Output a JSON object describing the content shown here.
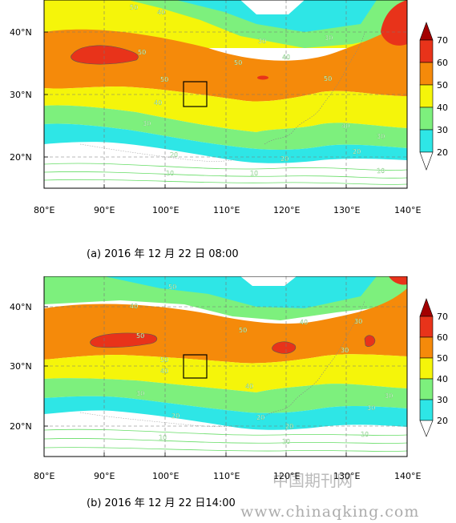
{
  "panels": [
    {
      "caption": "(a) 2016 年 12 月 22 日 08:00",
      "y_ticks": [
        "40°N",
        "30°N",
        "20°N"
      ],
      "x_ticks": [
        "80°E",
        "90°E",
        "100°E",
        "110°E",
        "120°E",
        "130°E",
        "140°E"
      ],
      "contour_labels": [
        "50",
        "50",
        "50",
        "40",
        "40",
        "50",
        "30",
        "30",
        "50",
        "40",
        "40",
        "30",
        "30",
        "20",
        "20",
        "20",
        "10",
        "10",
        "10"
      ]
    },
    {
      "caption": "(b) 2016 年 12 月 22 日14:00",
      "y_ticks": [
        "40°N",
        "30°N",
        "20°N"
      ],
      "x_ticks": [
        "80°E",
        "90°E",
        "100°E",
        "110°E",
        "120°E",
        "130°E",
        "140°E"
      ],
      "contour_labels": [
        "50",
        "40",
        "50",
        "40",
        "50",
        "50",
        "40",
        "30",
        "30",
        "40",
        "30",
        "30",
        "30",
        "20",
        "20",
        "20",
        "10",
        "10",
        "10"
      ]
    }
  ],
  "colorbar": {
    "labels": [
      "70",
      "60",
      "50",
      "40",
      "30",
      "20"
    ],
    "colors": {
      "above_70": "#a30000",
      "c60_70": "#e8331a",
      "c50_60": "#f58a0a",
      "c40_50": "#f5f50a",
      "c30_40": "#7df07d",
      "c20_30": "#2ee6e6",
      "below_20": "#ffffff"
    }
  },
  "watermark": {
    "cn": "中国期刊网",
    "url": "www.chinaqking.com"
  }
}
